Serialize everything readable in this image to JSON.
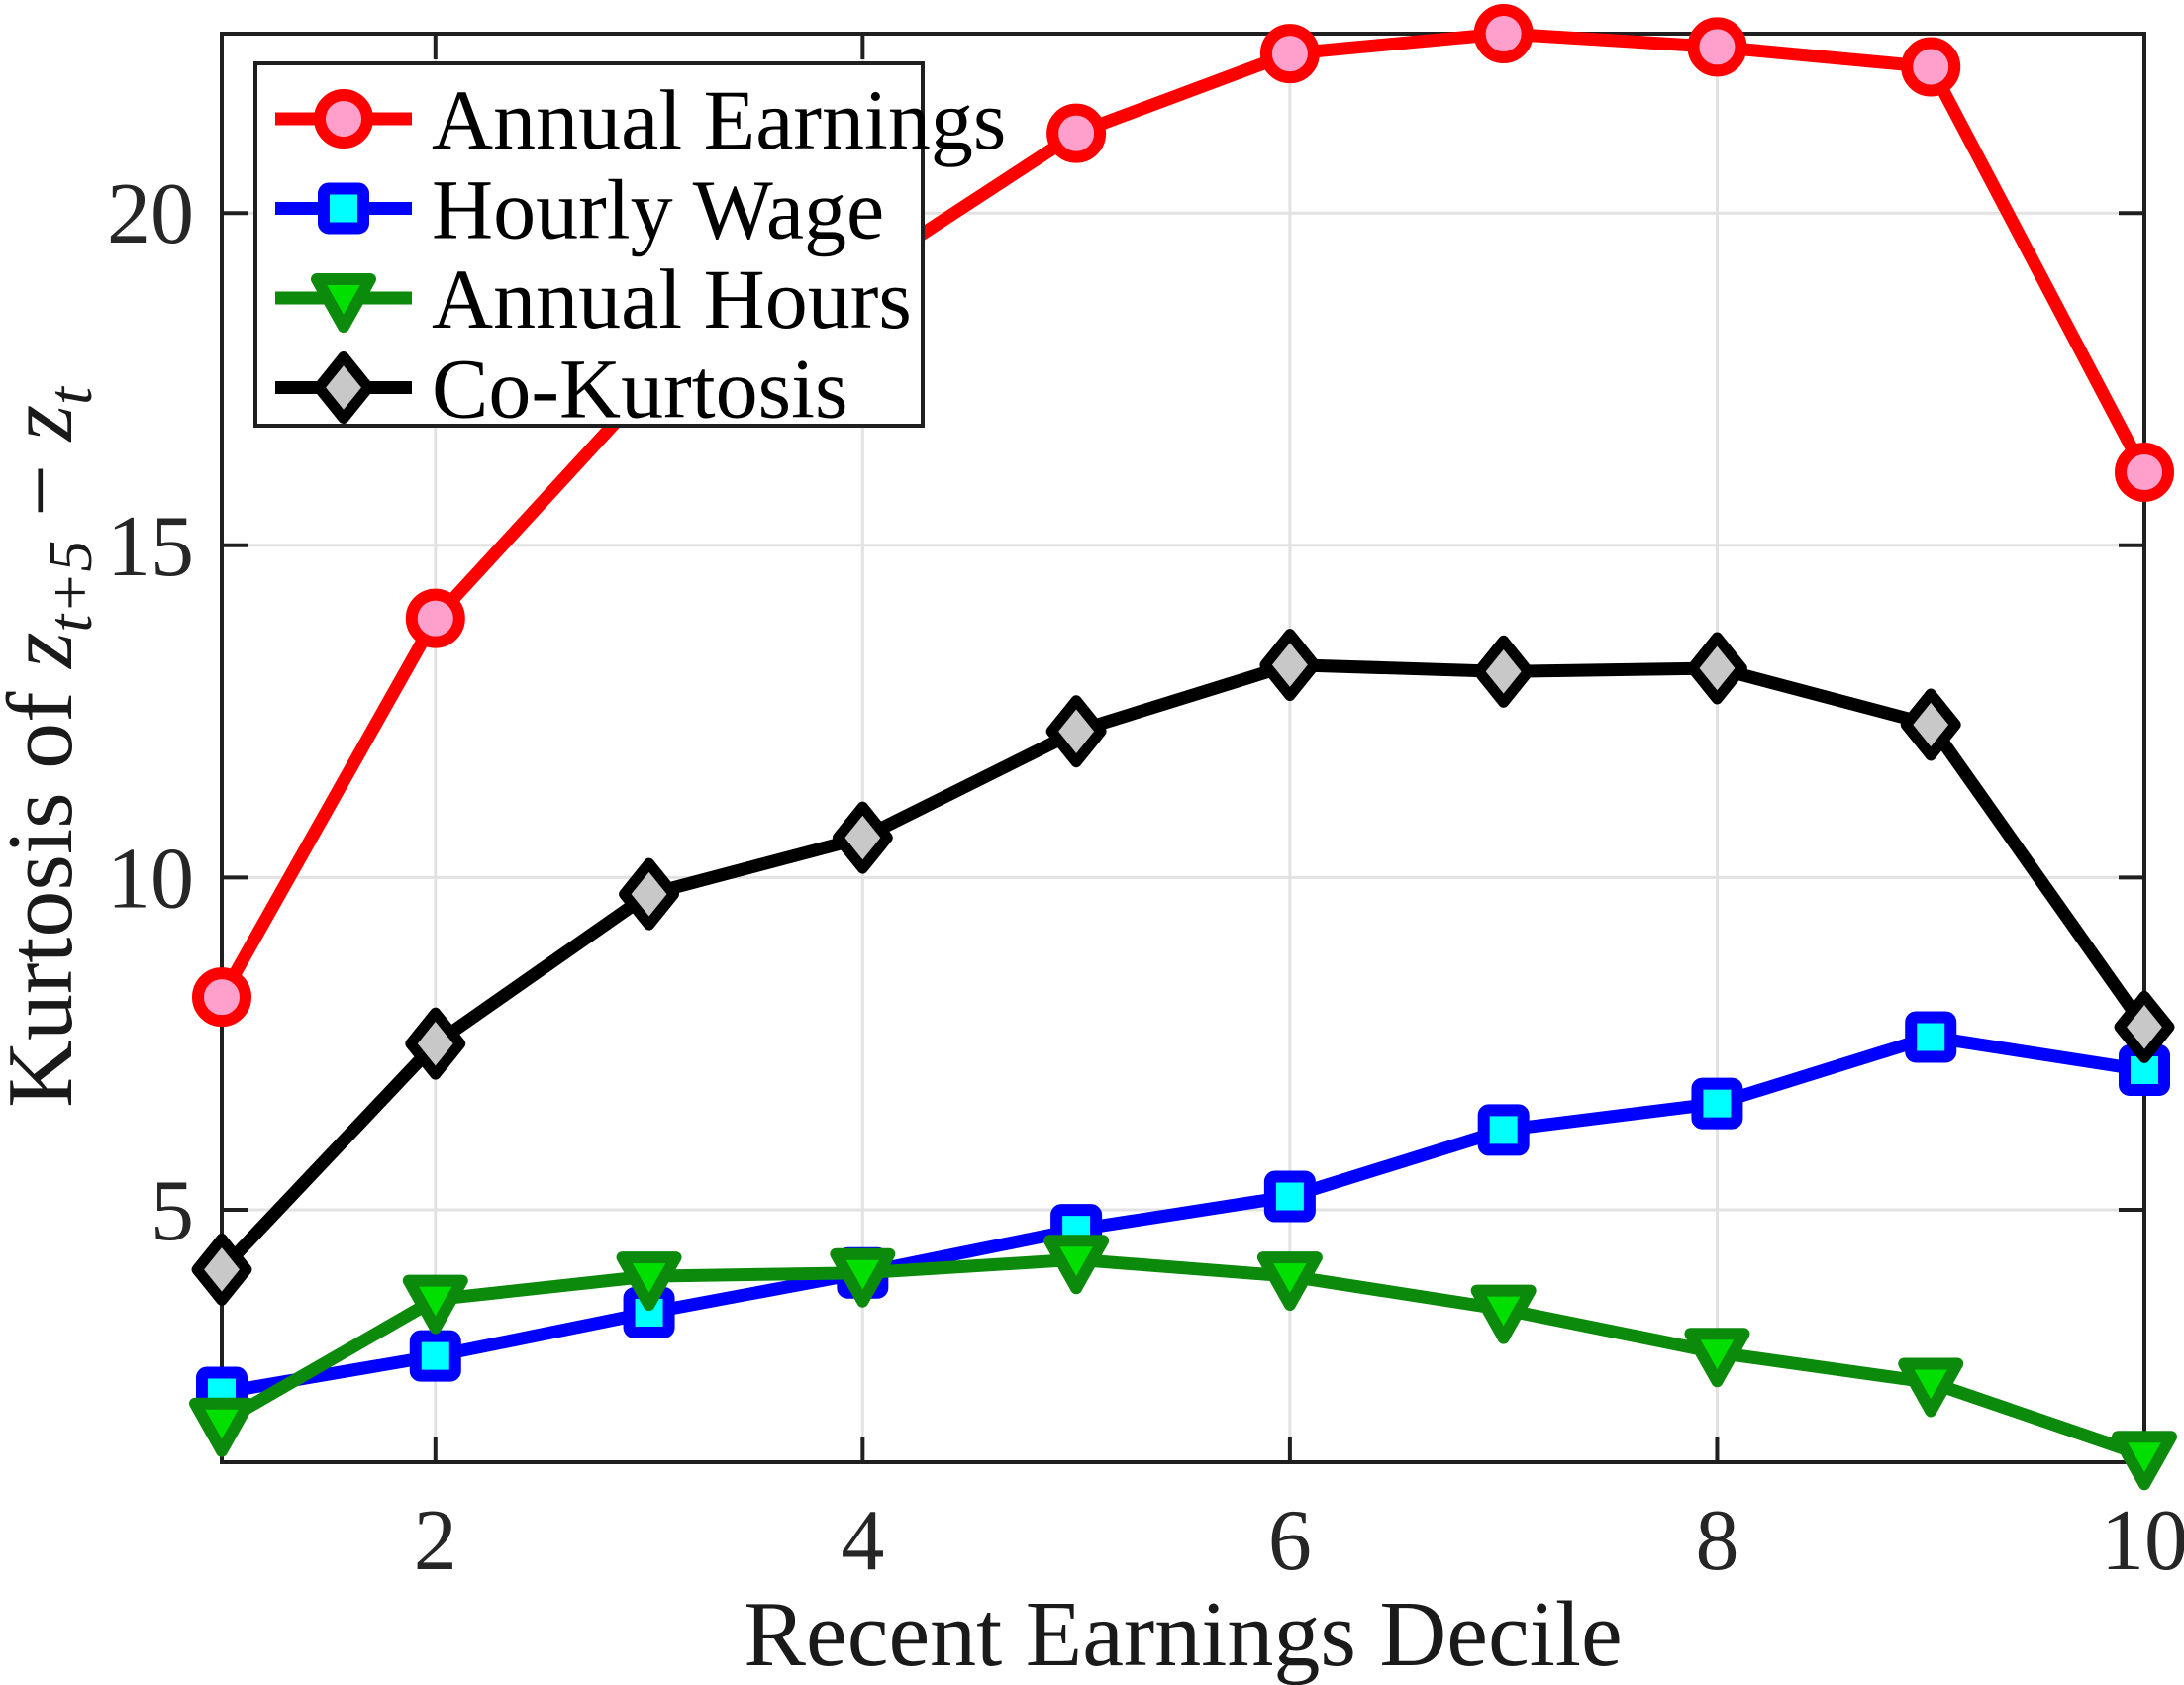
{
  "figure": {
    "xlabel": "Recent Earnings Decile",
    "ylabel": {
      "prefix": "Kurtosis of ",
      "var1": "z",
      "sub1": "t+5",
      "minus": " − ",
      "var2": "z",
      "sub2": "t"
    }
  },
  "chart_data": {
    "type": "line",
    "xlabel": "Recent Earnings Decile",
    "ylabel": "Kurtosis of z_{t+5} - z_t",
    "x": [
      1,
      2,
      3,
      4,
      5,
      6,
      7,
      8,
      9,
      10
    ],
    "series": [
      {
        "name": "Annual Earnings",
        "marker": "circle",
        "line_color": "#FF0000",
        "marker_face": "#FFA0CC",
        "values": [
          8.2,
          13.9,
          17.4,
          19.1,
          21.2,
          22.4,
          22.7,
          22.5,
          22.2,
          16.1
        ]
      },
      {
        "name": "Hourly Wage",
        "marker": "square",
        "line_color": "#0000FF",
        "marker_face": "#00FFFF",
        "values": [
          2.25,
          2.8,
          3.45,
          4.05,
          4.7,
          5.2,
          6.2,
          6.6,
          7.6,
          7.1
        ]
      },
      {
        "name": "Annual Hours",
        "marker": "triangle-down",
        "line_color": "#0B8A0B",
        "marker_face": "#00DF00",
        "values": [
          1.8,
          3.65,
          4.0,
          4.05,
          4.25,
          4.0,
          3.5,
          2.85,
          2.4,
          1.3
        ]
      },
      {
        "name": "Co-Kurtosis",
        "marker": "diamond",
        "line_color": "#000000",
        "marker_face": "#C8C8C8",
        "values": [
          4.1,
          7.5,
          9.75,
          10.6,
          12.2,
          13.2,
          13.1,
          13.15,
          12.3,
          7.75
        ]
      }
    ],
    "xticks": [
      2,
      4,
      6,
      8,
      10
    ],
    "yticks": [
      5,
      10,
      15,
      20
    ],
    "xlim": [
      1,
      10
    ],
    "ylim": [
      1.2,
      22.7
    ],
    "grid": true,
    "legend_position": "top-left",
    "style": {
      "grid_color": "#E2E2E2",
      "spine_color": "#1F1F1F",
      "tick_label_color": "#262626",
      "background": "#FFFFFF"
    }
  }
}
